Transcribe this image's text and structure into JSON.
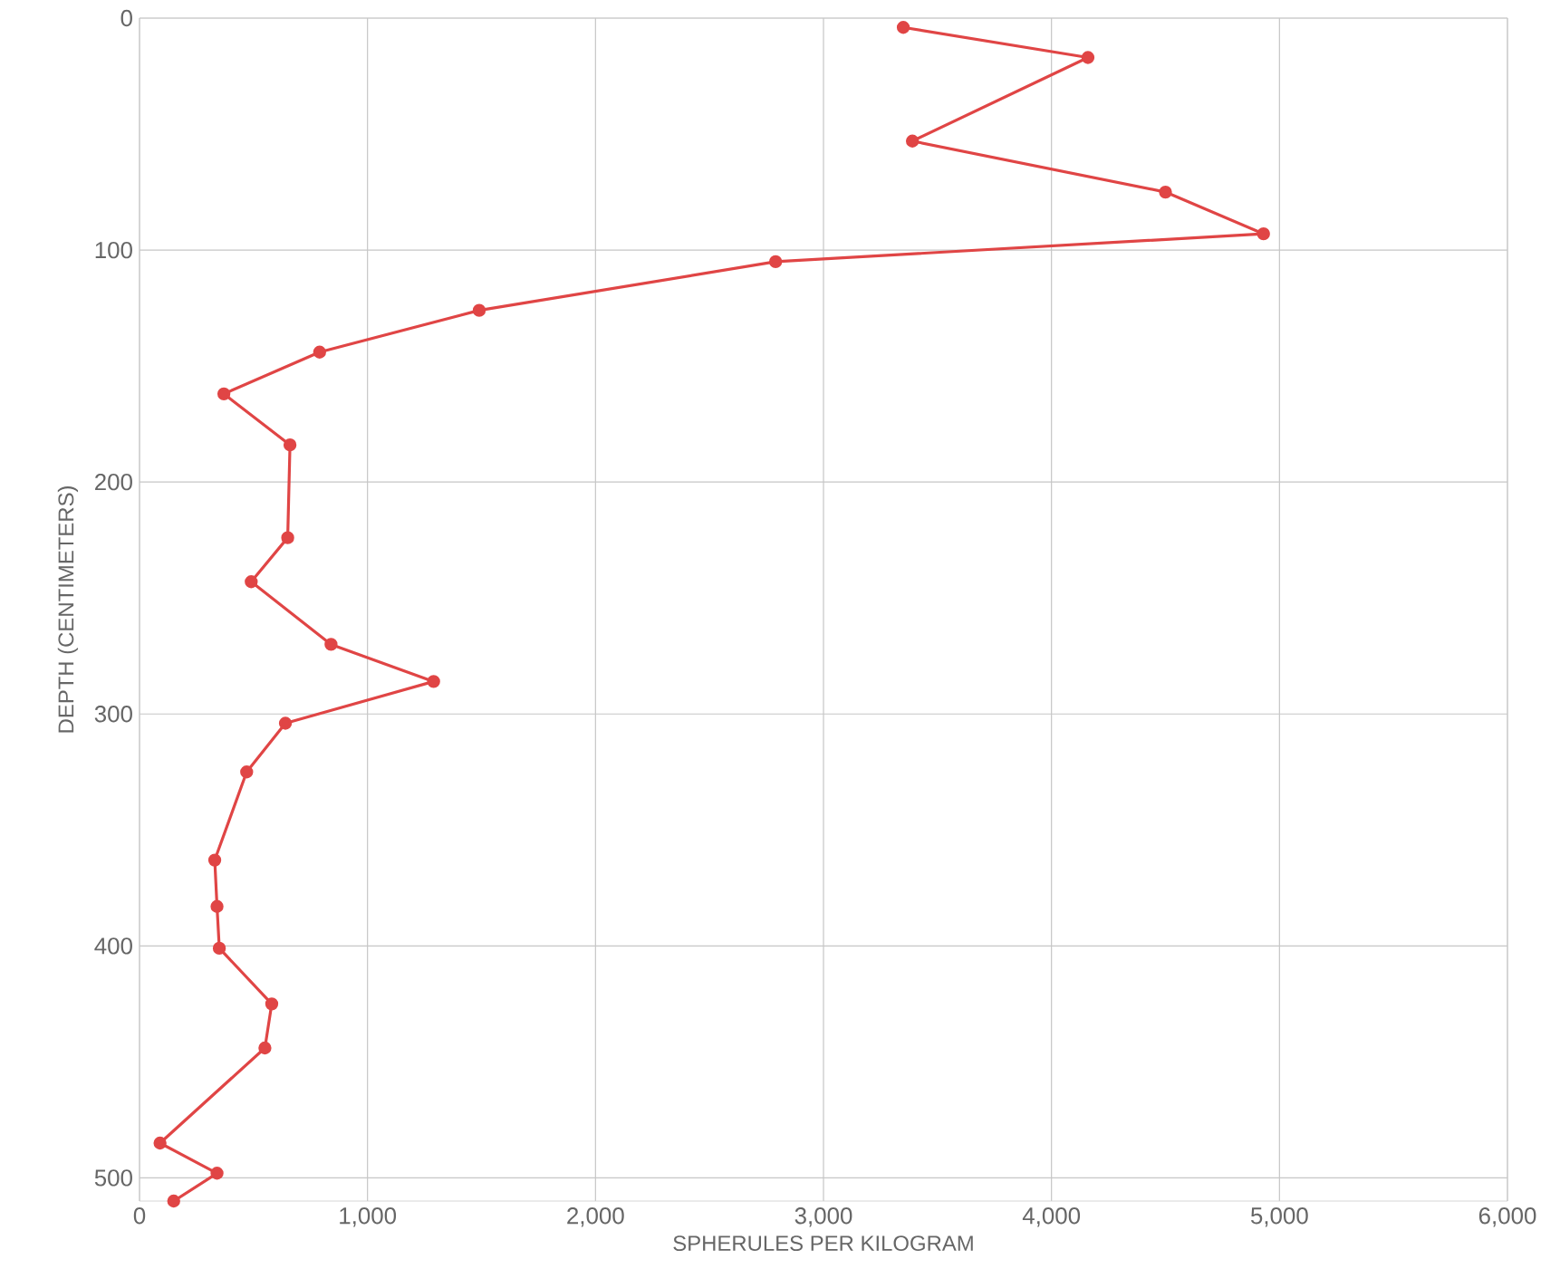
{
  "chart_data": {
    "type": "line",
    "xlabel": "SPHERULES PER KILOGRAM",
    "ylabel": "DEPTH (CENTIMETERS)",
    "xlim": [
      0,
      6000
    ],
    "ylim": [
      510,
      0
    ],
    "xticks": [
      0,
      {
        "value": 1000,
        "label": "1,000"
      },
      {
        "value": 2000,
        "label": "2,000"
      },
      {
        "value": 3000,
        "label": "3,000"
      },
      {
        "value": 4000,
        "label": "4,000"
      },
      {
        "value": 5000,
        "label": "5,000"
      },
      {
        "value": 6000,
        "label": "6,000"
      }
    ],
    "yticks": [
      0,
      100,
      200,
      300,
      400,
      500
    ],
    "grid": true,
    "marker": "circle",
    "line_style": "solid",
    "series": [
      {
        "color": "#e04545",
        "x": [
          3350,
          4160,
          3390,
          4500,
          4930,
          2790,
          1490,
          790,
          370,
          660,
          650,
          490,
          840,
          1290,
          640,
          470,
          330,
          340,
          350,
          580,
          550,
          90,
          340,
          150
        ],
        "values": [
          4,
          17,
          53,
          75,
          93,
          105,
          126,
          144,
          162,
          184,
          224,
          243,
          270,
          286,
          304,
          325,
          363,
          383,
          401,
          425,
          444,
          485,
          498,
          510
        ]
      }
    ]
  }
}
